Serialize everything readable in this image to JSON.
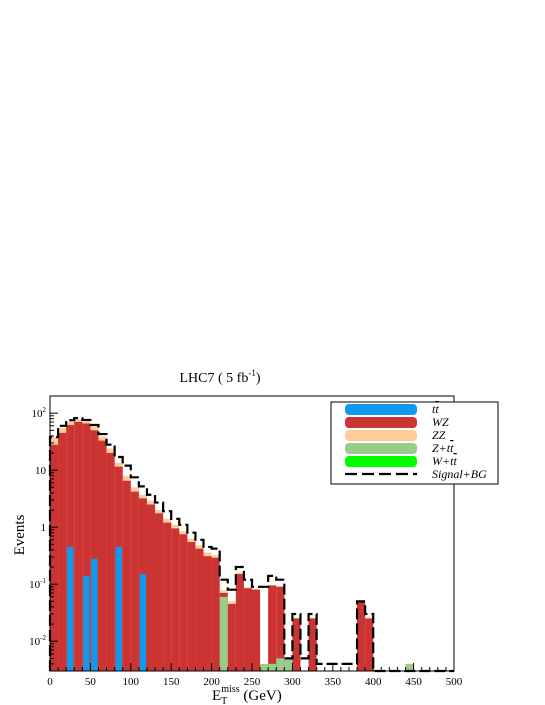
{
  "chart_data": {
    "type": "bar",
    "title": {
      "main": "LHC7 ( 5  fb",
      "sup": "-1",
      "close": ")"
    },
    "xlabel": {
      "main": "E",
      "sub": "T",
      "sup": "miss",
      "unit": " (GeV)"
    },
    "ylabel": "Events",
    "xlim": [
      0,
      500
    ],
    "ylim": [
      0.003,
      200
    ],
    "yscale": "log",
    "grid": false,
    "legend_position": "top-right",
    "x_ticks": [
      "0",
      "50",
      "100",
      "150",
      "200",
      "250",
      "300",
      "350",
      "400",
      "450",
      "500"
    ],
    "y_ticks": [
      {
        "base": "10",
        "exp": "-2",
        "value": 0.01
      },
      {
        "base": "10",
        "exp": "-1",
        "value": 0.1
      },
      {
        "base": "1",
        "exp": "",
        "value": 1
      },
      {
        "base": "10",
        "exp": "",
        "value": 10
      },
      {
        "base": "10",
        "exp": "2",
        "value": 100
      }
    ],
    "bin_width": 10,
    "bin_starts": [
      0,
      10,
      20,
      30,
      40,
      50,
      60,
      70,
      80,
      90,
      100,
      110,
      120,
      130,
      140,
      150,
      160,
      170,
      180,
      190,
      200,
      210,
      220,
      230,
      240,
      250,
      260,
      270,
      280,
      290,
      300,
      310,
      320,
      330,
      340,
      350,
      360,
      370,
      380,
      390,
      400,
      410,
      420,
      430,
      440,
      450,
      460,
      470,
      480,
      490
    ],
    "series": [
      {
        "label": "WZ",
        "color": "#cc3333",
        "values": [
          28,
          45,
          62,
          70,
          66,
          50,
          33,
          20,
          11.5,
          6.5,
          4.2,
          3.2,
          2.5,
          1.75,
          1.2,
          0.95,
          0.75,
          0.55,
          0.42,
          0.31,
          0.29,
          0.07,
          0.045,
          0.15,
          0.085,
          0.08,
          0,
          0.095,
          0.09,
          0,
          0.025,
          0,
          0.025,
          0,
          0,
          0,
          0,
          0,
          0.048,
          0.025,
          0,
          0,
          0,
          0,
          0,
          0,
          0,
          0,
          0,
          0
        ]
      },
      {
        "label": "t̅t̅",
        "color": "#1199ee",
        "values": [
          0,
          0,
          0.45,
          0,
          0.14,
          0.28,
          0,
          0,
          0.45,
          0,
          0,
          0.15,
          0,
          0,
          0,
          0,
          0,
          0,
          0,
          0,
          0,
          0,
          0,
          0,
          0,
          0,
          0,
          0,
          0,
          0,
          0,
          0,
          0,
          0,
          0,
          0,
          0,
          0,
          0,
          0,
          0,
          0,
          0,
          0,
          0,
          0,
          0,
          0,
          0,
          0
        ]
      },
      {
        "label": "ZZ",
        "color": "#ffcc99",
        "values": [
          38,
          55,
          70,
          78,
          73,
          58,
          39,
          24,
          13.5,
          8,
          5,
          3.7,
          2.9,
          2.0,
          1.4,
          1.1,
          0.85,
          0.63,
          0.48,
          0.36,
          0.32,
          0.078,
          0.05,
          0.16,
          0.088,
          0.082,
          0,
          0.097,
          0.092,
          0,
          0.026,
          0,
          0.026,
          0,
          0,
          0,
          0,
          0,
          0.049,
          0.026,
          0,
          0,
          0,
          0,
          0,
          0,
          0,
          0,
          0,
          0
        ]
      },
      {
        "label": "Z+t̅t̅",
        "color": "#99cc88",
        "values": [
          0,
          0,
          0,
          0,
          0,
          0,
          0,
          0,
          0,
          0,
          0,
          0,
          0,
          0,
          0,
          0,
          0,
          0,
          0,
          0,
          0,
          0.06,
          0,
          0,
          0,
          0,
          0.004,
          0.004,
          0.005,
          0.005,
          0,
          0,
          0,
          0,
          0,
          0,
          0,
          0,
          0,
          0,
          0,
          0,
          0,
          0,
          0.004,
          0,
          0,
          0,
          0,
          0
        ]
      },
      {
        "label": "W+t̅t̅",
        "color": "#00ff00",
        "values": []
      }
    ],
    "signal_bg": {
      "label": "Signal+BG",
      "values": [
        38,
        60,
        75,
        82,
        76,
        62,
        43,
        28,
        17,
        12,
        7.5,
        5.2,
        3.7,
        2.7,
        1.9,
        1.4,
        1.1,
        0.8,
        0.6,
        0.45,
        0.42,
        0.12,
        0.08,
        0.2,
        0.12,
        0.09,
        0.09,
        0.14,
        0.12,
        0.005,
        0.03,
        0.005,
        0.03,
        0.004,
        0.004,
        0.004,
        0.004,
        0.004,
        0.05,
        0.03,
        0.003,
        0.003,
        0.003,
        0.003,
        0.003,
        0.003,
        0.003,
        0.003,
        0.003,
        0.003
      ]
    },
    "legend_entries": [
      {
        "label_base": "t",
        "label_bar": "t",
        "style": "box",
        "color": "#1199ee"
      },
      {
        "label_base": "WZ",
        "style": "box",
        "color": "#cc3333"
      },
      {
        "label_base": "ZZ",
        "style": "box",
        "color": "#ffcc99"
      },
      {
        "label_base": "Z+t",
        "label_bar": "t",
        "style": "box",
        "color": "#99cc88"
      },
      {
        "label_base": "W+t",
        "label_bar": "t",
        "style": "box",
        "color": "#00ff00"
      },
      {
        "label_base": "Signal+BG",
        "style": "dashed",
        "color": "#000000"
      }
    ]
  }
}
